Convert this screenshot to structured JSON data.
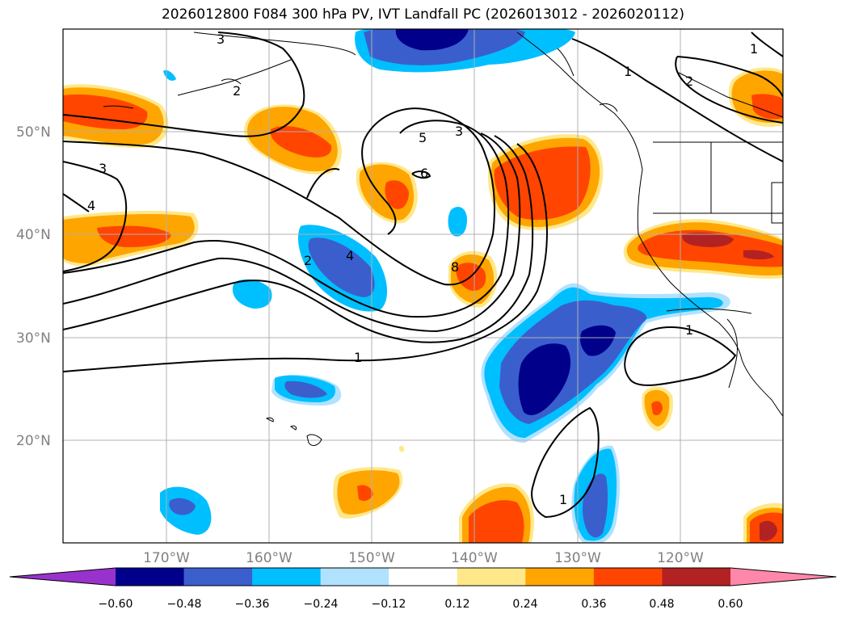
{
  "title": "2026012800 F084 300 hPa PV, IVT Landfall PC (2026013012 - 2026020112)",
  "axes": {
    "lat_ticks": [
      "50°N",
      "40°N",
      "30°N",
      "20°N"
    ],
    "lon_ticks": [
      "170°W",
      "160°W",
      "150°W",
      "140°W",
      "130°W",
      "120°W"
    ]
  },
  "colorbar": {
    "ticks": [
      "−0.60",
      "−0.48",
      "−0.36",
      "−0.24",
      "−0.12",
      "0.12",
      "0.24",
      "0.36",
      "0.48",
      "0.60"
    ],
    "colors": [
      "#9932cc",
      "#00008b",
      "#3a5fcd",
      "#00bfff",
      "#b0e2ff",
      "#ffffff",
      "#ffe88a",
      "#ffa500",
      "#ff4500",
      "#b22222",
      "#ff88aa"
    ]
  },
  "contour_labels": [
    "3",
    "2",
    "3",
    "4",
    "5",
    "3",
    "6",
    "2",
    "4",
    "8",
    "1",
    "1",
    "1",
    "1",
    "2",
    "1"
  ]
}
